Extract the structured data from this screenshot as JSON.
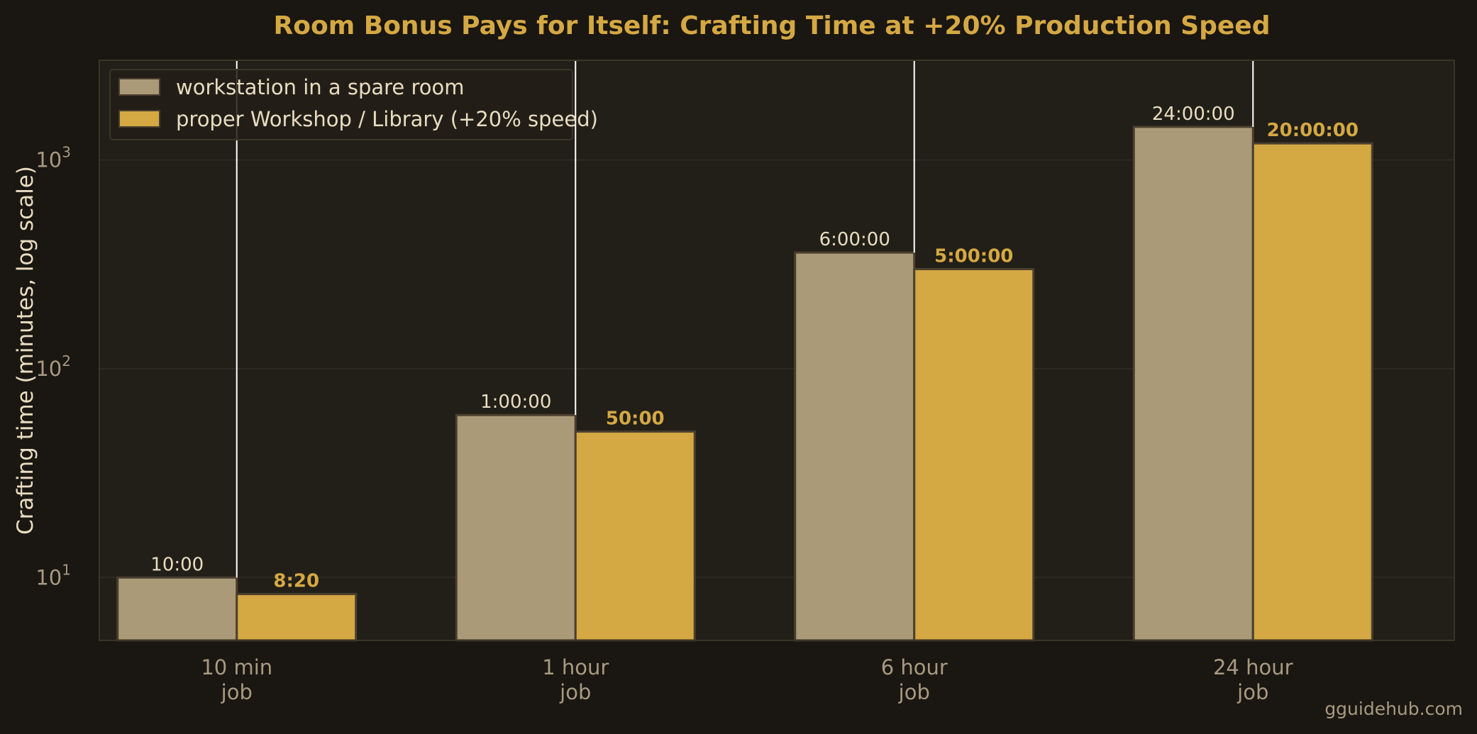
{
  "chart_data": {
    "type": "bar",
    "title": "Room Bonus Pays for Itself: Crafting Time at +20% Production Speed",
    "ylabel": "Crafting time (minutes, log scale)",
    "xlabel": "",
    "yscale": "log",
    "ylim": [
      5,
      3000
    ],
    "grid": "horizontal",
    "legend_position": "top-left",
    "categories": [
      [
        "10 min",
        "job"
      ],
      [
        "1 hour",
        "job"
      ],
      [
        "6 hour",
        "job"
      ],
      [
        "24 hour",
        "job"
      ]
    ],
    "yticks": [
      {
        "base": "10",
        "exp": "1",
        "value": 10
      },
      {
        "base": "10",
        "exp": "2",
        "value": 100
      },
      {
        "base": "10",
        "exp": "3",
        "value": 1000
      }
    ],
    "series": [
      {
        "name": "workstation in a spare room",
        "color": "#ab9a78",
        "values": [
          10,
          60,
          360,
          1440
        ],
        "labels": [
          "10:00",
          "1:00:00",
          "6:00:00",
          "24:00:00"
        ]
      },
      {
        "name": "proper Workshop / Library (+20% speed)",
        "color": "#d4a843",
        "values": [
          8.333,
          50,
          300,
          1200
        ],
        "labels": [
          "8:20",
          "50:00",
          "5:00:00",
          "20:00:00"
        ]
      }
    ]
  },
  "watermark": "gguidehub.com",
  "colors": {
    "background": "#1a1611",
    "plot_background": "#221f18",
    "accent": "#d4a843",
    "bar_edge": "#4a3f2e",
    "separator": "#ffffff"
  }
}
